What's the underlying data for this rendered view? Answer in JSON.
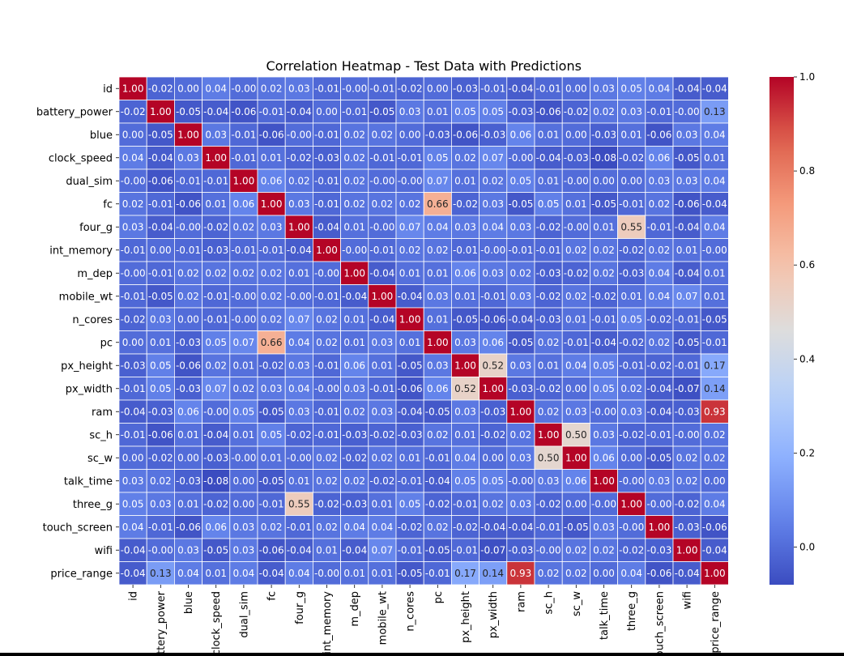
{
  "chart_data": {
    "type": "heatmap",
    "title": "Correlation Heatmap - Test Data with Predictions",
    "colormap": "coolwarm",
    "vmin": -0.08,
    "vmax": 1.0,
    "labels": [
      "id",
      "battery_power",
      "blue",
      "clock_speed",
      "dual_sim",
      "fc",
      "four_g",
      "int_memory",
      "m_dep",
      "mobile_wt",
      "n_cores",
      "pc",
      "px_height",
      "px_width",
      "ram",
      "sc_h",
      "sc_w",
      "talk_time",
      "three_g",
      "touch_screen",
      "wifi",
      "price_range"
    ],
    "matrix": [
      [
        "1.00",
        "-0.02",
        "0.00",
        "0.04",
        "-0.00",
        "0.02",
        "0.03",
        "-0.01",
        "-0.00",
        "-0.01",
        "-0.02",
        "0.00",
        "-0.03",
        "-0.01",
        "-0.04",
        "-0.01",
        "0.00",
        "0.03",
        "0.05",
        "0.04",
        "-0.04",
        "-0.04"
      ],
      [
        "-0.02",
        "1.00",
        "-0.05",
        "-0.04",
        "-0.06",
        "-0.01",
        "-0.04",
        "0.00",
        "-0.01",
        "-0.05",
        "0.03",
        "0.01",
        "0.05",
        "0.05",
        "-0.03",
        "-0.06",
        "-0.02",
        "0.02",
        "0.03",
        "-0.01",
        "-0.00",
        "0.13"
      ],
      [
        "0.00",
        "-0.05",
        "1.00",
        "0.03",
        "-0.01",
        "-0.06",
        "-0.00",
        "-0.01",
        "0.02",
        "0.02",
        "0.00",
        "-0.03",
        "-0.06",
        "-0.03",
        "0.06",
        "0.01",
        "0.00",
        "-0.03",
        "0.01",
        "-0.06",
        "0.03",
        "0.04"
      ],
      [
        "0.04",
        "-0.04",
        "0.03",
        "1.00",
        "-0.01",
        "0.01",
        "-0.02",
        "-0.03",
        "0.02",
        "-0.01",
        "-0.01",
        "0.05",
        "0.02",
        "0.07",
        "-0.00",
        "-0.04",
        "-0.03",
        "-0.08",
        "-0.02",
        "0.06",
        "-0.05",
        "0.01"
      ],
      [
        "-0.00",
        "-0.06",
        "-0.01",
        "-0.01",
        "1.00",
        "0.06",
        "0.02",
        "-0.01",
        "0.02",
        "-0.00",
        "-0.00",
        "0.07",
        "0.01",
        "0.02",
        "0.05",
        "0.01",
        "-0.00",
        "0.00",
        "0.00",
        "0.03",
        "0.03",
        "0.04"
      ],
      [
        "0.02",
        "-0.01",
        "-0.06",
        "0.01",
        "0.06",
        "1.00",
        "0.03",
        "-0.01",
        "0.02",
        "0.02",
        "0.02",
        "0.66",
        "-0.02",
        "0.03",
        "-0.05",
        "0.05",
        "0.01",
        "-0.05",
        "-0.01",
        "0.02",
        "-0.06",
        "-0.04"
      ],
      [
        "0.03",
        "-0.04",
        "-0.00",
        "-0.02",
        "0.02",
        "0.03",
        "1.00",
        "-0.04",
        "0.01",
        "-0.00",
        "0.07",
        "0.04",
        "0.03",
        "0.04",
        "0.03",
        "-0.02",
        "-0.00",
        "0.01",
        "0.55",
        "-0.01",
        "-0.04",
        "0.04"
      ],
      [
        "-0.01",
        "0.00",
        "-0.01",
        "-0.03",
        "-0.01",
        "-0.01",
        "-0.04",
        "1.00",
        "-0.00",
        "-0.01",
        "0.02",
        "0.02",
        "-0.01",
        "-0.00",
        "-0.01",
        "-0.01",
        "0.02",
        "0.02",
        "-0.02",
        "0.02",
        "0.01",
        "-0.00"
      ],
      [
        "-0.00",
        "-0.01",
        "0.02",
        "0.02",
        "0.02",
        "0.02",
        "0.01",
        "-0.00",
        "1.00",
        "-0.04",
        "0.01",
        "0.01",
        "0.06",
        "0.03",
        "0.02",
        "-0.03",
        "-0.02",
        "0.02",
        "-0.03",
        "0.04",
        "-0.04",
        "0.01"
      ],
      [
        "-0.01",
        "-0.05",
        "0.02",
        "-0.01",
        "-0.00",
        "0.02",
        "-0.00",
        "-0.01",
        "-0.04",
        "1.00",
        "-0.04",
        "0.03",
        "0.01",
        "-0.01",
        "0.03",
        "-0.02",
        "0.02",
        "-0.02",
        "0.01",
        "0.04",
        "0.07",
        "0.01"
      ],
      [
        "-0.02",
        "0.03",
        "0.00",
        "-0.01",
        "-0.00",
        "0.02",
        "0.07",
        "0.02",
        "0.01",
        "-0.04",
        "1.00",
        "0.01",
        "-0.05",
        "-0.06",
        "-0.04",
        "-0.03",
        "0.01",
        "-0.01",
        "0.05",
        "-0.02",
        "-0.01",
        "-0.05"
      ],
      [
        "0.00",
        "0.01",
        "-0.03",
        "0.05",
        "0.07",
        "0.66",
        "0.04",
        "0.02",
        "0.01",
        "0.03",
        "0.01",
        "1.00",
        "0.03",
        "0.06",
        "-0.05",
        "0.02",
        "-0.01",
        "-0.04",
        "-0.02",
        "0.02",
        "-0.05",
        "-0.01"
      ],
      [
        "-0.03",
        "0.05",
        "-0.06",
        "0.02",
        "0.01",
        "-0.02",
        "0.03",
        "-0.01",
        "0.06",
        "0.01",
        "-0.05",
        "0.03",
        "1.00",
        "0.52",
        "0.03",
        "0.01",
        "0.04",
        "0.05",
        "-0.01",
        "-0.02",
        "-0.01",
        "0.17"
      ],
      [
        "-0.01",
        "0.05",
        "-0.03",
        "0.07",
        "0.02",
        "0.03",
        "0.04",
        "-0.00",
        "0.03",
        "-0.01",
        "-0.06",
        "0.06",
        "0.52",
        "1.00",
        "-0.03",
        "-0.02",
        "0.00",
        "0.05",
        "0.02",
        "-0.04",
        "-0.07",
        "0.14"
      ],
      [
        "-0.04",
        "-0.03",
        "0.06",
        "-0.00",
        "0.05",
        "-0.05",
        "0.03",
        "-0.01",
        "0.02",
        "0.03",
        "-0.04",
        "-0.05",
        "0.03",
        "-0.03",
        "1.00",
        "0.02",
        "0.03",
        "-0.00",
        "0.03",
        "-0.04",
        "-0.03",
        "0.93"
      ],
      [
        "-0.01",
        "-0.06",
        "0.01",
        "-0.04",
        "0.01",
        "0.05",
        "-0.02",
        "-0.01",
        "-0.03",
        "-0.02",
        "-0.03",
        "0.02",
        "0.01",
        "-0.02",
        "0.02",
        "1.00",
        "0.50",
        "0.03",
        "-0.02",
        "-0.01",
        "-0.00",
        "0.02"
      ],
      [
        "0.00",
        "-0.02",
        "0.00",
        "-0.03",
        "-0.00",
        "0.01",
        "-0.00",
        "0.02",
        "-0.02",
        "0.02",
        "0.01",
        "-0.01",
        "0.04",
        "0.00",
        "0.03",
        "0.50",
        "1.00",
        "0.06",
        "0.00",
        "-0.05",
        "0.02",
        "0.02"
      ],
      [
        "0.03",
        "0.02",
        "-0.03",
        "-0.08",
        "0.00",
        "-0.05",
        "0.01",
        "0.02",
        "0.02",
        "-0.02",
        "-0.01",
        "-0.04",
        "0.05",
        "0.05",
        "-0.00",
        "0.03",
        "0.06",
        "1.00",
        "-0.00",
        "0.03",
        "0.02",
        "0.00"
      ],
      [
        "0.05",
        "0.03",
        "0.01",
        "-0.02",
        "0.00",
        "-0.01",
        "0.55",
        "-0.02",
        "-0.03",
        "0.01",
        "0.05",
        "-0.02",
        "-0.01",
        "0.02",
        "0.03",
        "-0.02",
        "0.00",
        "-0.00",
        "1.00",
        "-0.00",
        "-0.02",
        "0.04"
      ],
      [
        "0.04",
        "-0.01",
        "-0.06",
        "0.06",
        "0.03",
        "0.02",
        "-0.01",
        "0.02",
        "0.04",
        "0.04",
        "-0.02",
        "0.02",
        "-0.02",
        "-0.04",
        "-0.04",
        "-0.01",
        "-0.05",
        "0.03",
        "-0.00",
        "1.00",
        "-0.03",
        "-0.06"
      ],
      [
        "-0.04",
        "-0.00",
        "0.03",
        "-0.05",
        "0.03",
        "-0.06",
        "-0.04",
        "0.01",
        "-0.04",
        "0.07",
        "-0.01",
        "-0.05",
        "-0.01",
        "-0.07",
        "-0.03",
        "-0.00",
        "0.02",
        "0.02",
        "-0.02",
        "-0.03",
        "1.00",
        "-0.04"
      ],
      [
        "-0.04",
        "0.13",
        "0.04",
        "0.01",
        "0.04",
        "-0.04",
        "0.04",
        "-0.00",
        "0.01",
        "0.01",
        "-0.05",
        "-0.01",
        "0.17",
        "0.14",
        "0.93",
        "0.02",
        "0.02",
        "0.00",
        "0.04",
        "-0.06",
        "-0.04",
        "1.00"
      ]
    ],
    "colorbar_ticks": [
      "0.0",
      "0.2",
      "0.4",
      "0.6",
      "0.8",
      "1.0"
    ],
    "colorbar_tick_values": [
      0.0,
      0.2,
      0.4,
      0.6,
      0.8,
      1.0
    ]
  }
}
